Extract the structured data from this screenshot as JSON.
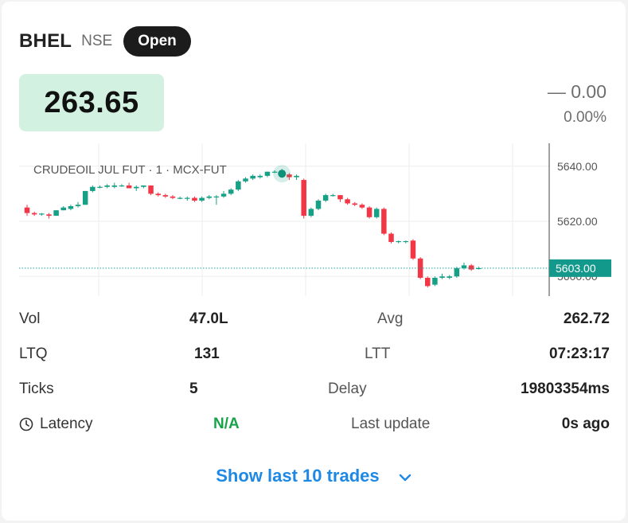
{
  "header": {
    "symbol": "BHEL",
    "exchange": "NSE",
    "status_badge": "Open"
  },
  "quote": {
    "last_price": "263.65",
    "change_abs": "— 0.00",
    "change_pct": "0.00%"
  },
  "chart_data": {
    "type": "candlestick",
    "title": "CRUDEOIL JUL FUT · 1 · MCX-FUT",
    "y_ticks": [
      "5640.00",
      "5620.00",
      "5600.00"
    ],
    "y_tick_values": [
      5640,
      5620,
      5600
    ],
    "last_price_label": "5603.00",
    "last_price_value": 5603,
    "ylim": [
      5594,
      5646
    ],
    "colors": {
      "up": "#16a085",
      "down": "#f23645",
      "last_line": "#1aa39a"
    },
    "candles": [
      [
        5625,
        5626,
        5622,
        5623
      ],
      [
        5623,
        5623.5,
        5622,
        5622.5
      ],
      [
        5622.5,
        5623,
        5622,
        5622.8
      ],
      [
        5622.5,
        5623,
        5621,
        5622
      ],
      [
        5622,
        5624,
        5622,
        5624
      ],
      [
        5624,
        5625.5,
        5624,
        5625
      ],
      [
        5624.5,
        5626,
        5624,
        5625.5
      ],
      [
        5625.5,
        5627,
        5625,
        5626
      ],
      [
        5626,
        5631,
        5626,
        5631
      ],
      [
        5631,
        5633,
        5630.5,
        5632.5
      ],
      [
        5632.5,
        5633,
        5632,
        5632.5
      ],
      [
        5632.5,
        5633.5,
        5632,
        5633
      ],
      [
        5632.5,
        5634,
        5632,
        5633
      ],
      [
        5633,
        5633.5,
        5632.5,
        5633
      ],
      [
        5633,
        5634,
        5632,
        5632
      ],
      [
        5632,
        5633,
        5631,
        5632.5
      ],
      [
        5632.5,
        5633,
        5632,
        5633
      ],
      [
        5633,
        5633,
        5629.5,
        5630
      ],
      [
        5630,
        5630.5,
        5629,
        5629.5
      ],
      [
        5629.5,
        5630,
        5628.5,
        5629
      ],
      [
        5629,
        5629.5,
        5628,
        5628.5
      ],
      [
        5628.5,
        5629,
        5628,
        5628.5
      ],
      [
        5628.5,
        5629,
        5627.5,
        5628.5
      ],
      [
        5628.5,
        5629,
        5627,
        5627.5
      ],
      [
        5627.5,
        5629,
        5627,
        5628.5
      ],
      [
        5628.5,
        5629.5,
        5628,
        5629
      ],
      [
        5629,
        5629.5,
        5626,
        5629
      ],
      [
        5629,
        5631,
        5628.5,
        5630
      ],
      [
        5630,
        5632,
        5629.5,
        5631.5
      ],
      [
        5631.5,
        5635,
        5631,
        5634.5
      ],
      [
        5634.5,
        5636,
        5634,
        5635.5
      ],
      [
        5635.5,
        5637,
        5635,
        5636.5
      ],
      [
        5636,
        5637,
        5635.5,
        5636.5
      ],
      [
        5636.5,
        5638,
        5636,
        5638
      ],
      [
        5638,
        5638.5,
        5637.5,
        5638
      ],
      [
        5638,
        5639,
        5637,
        5638.5
      ],
      [
        5637,
        5637.5,
        5635,
        5636
      ],
      [
        5636,
        5637,
        5635,
        5636.5
      ],
      [
        5635,
        5635.5,
        5621,
        5622
      ],
      [
        5622,
        5625,
        5621.5,
        5624.5
      ],
      [
        5624.5,
        5628,
        5624,
        5627.5
      ],
      [
        5627.5,
        5630,
        5627,
        5629.5
      ],
      [
        5629.5,
        5630,
        5629,
        5629.5
      ],
      [
        5629.5,
        5629.5,
        5627,
        5628
      ],
      [
        5628,
        5628.5,
        5626,
        5626.5
      ],
      [
        5626.5,
        5627,
        5625.5,
        5626
      ],
      [
        5626,
        5626.5,
        5624.5,
        5625
      ],
      [
        5625,
        5625.5,
        5621,
        5621.5
      ],
      [
        5621.5,
        5625,
        5621,
        5624.5
      ],
      [
        5624.5,
        5625,
        5615,
        5615.5
      ],
      [
        5615.5,
        5616,
        5612,
        5612.5
      ],
      [
        5612.5,
        5613,
        5612,
        5612.8
      ],
      [
        5612.5,
        5613,
        5612,
        5612.8
      ],
      [
        5613,
        5613.5,
        5606,
        5606.5
      ],
      [
        5606.5,
        5607,
        5599,
        5599.5
      ],
      [
        5599.5,
        5600,
        5596,
        5596.5
      ],
      [
        5597,
        5600,
        5596.5,
        5599.5
      ],
      [
        5599.5,
        5601,
        5599,
        5600
      ],
      [
        5599.5,
        5600.5,
        5599,
        5600
      ],
      [
        5600,
        5603.5,
        5599.5,
        5603
      ],
      [
        5603,
        5605,
        5602.5,
        5604
      ],
      [
        5604,
        5604.5,
        5602,
        5602.5
      ],
      [
        5603,
        5603.5,
        5602.5,
        5603
      ]
    ]
  },
  "stats": {
    "vol_label": "Vol",
    "vol_value": "47.0L",
    "avg_label": "Avg",
    "avg_value": "262.72",
    "ltq_label": "LTQ",
    "ltq_value": "131",
    "ltt_label": "LTT",
    "ltt_value": "07:23:17",
    "ticks_label": "Ticks",
    "ticks_value": "5",
    "delay_label": "Delay",
    "delay_value": "19803354ms",
    "latency_label": "Latency",
    "latency_value": "N/A",
    "latency_icon": "clock-icon",
    "last_update_label": "Last update",
    "last_update_value": "0s ago"
  },
  "footer": {
    "show_trades_label": "Show last 10 trades",
    "chevron_icon": "chevron-down-icon"
  }
}
